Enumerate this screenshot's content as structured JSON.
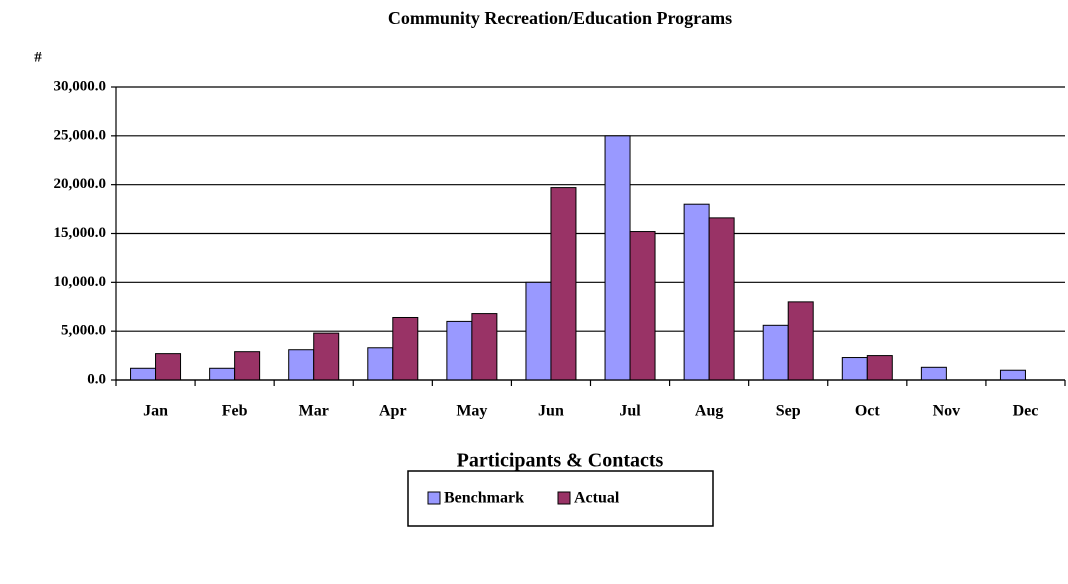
{
  "chart_data": {
    "type": "bar",
    "title": "Community Recreation/Education Programs",
    "y_label": "#",
    "x_label": "Participants & Contacts",
    "categories": [
      "Jan",
      "Feb",
      "Mar",
      "Apr",
      "May",
      "Jun",
      "Jul",
      "Aug",
      "Sep",
      "Oct",
      "Nov",
      "Dec"
    ],
    "series": [
      {
        "name": "Benchmark",
        "color": "#9999ff",
        "values": [
          1200,
          1200,
          3100,
          3300,
          6000,
          10000,
          25000,
          18000,
          5600,
          2300,
          1300,
          1000
        ]
      },
      {
        "name": "Actual",
        "color": "#993366",
        "values": [
          2700,
          2900,
          4800,
          6400,
          6800,
          19700,
          15200,
          16600,
          8000,
          2500,
          null,
          null
        ]
      }
    ],
    "ylim": [
      0,
      30000
    ],
    "yticks": [
      {
        "value": 0,
        "label": "0.0"
      },
      {
        "value": 5000,
        "label": "5,000.0"
      },
      {
        "value": 10000,
        "label": "10,000.0"
      },
      {
        "value": 15000,
        "label": "15,000.0"
      },
      {
        "value": 20000,
        "label": "20,000.0"
      },
      {
        "value": 25000,
        "label": "25,000.0"
      },
      {
        "value": 30000,
        "label": "30,000.0"
      }
    ],
    "grid": true,
    "legend": "bottom"
  }
}
